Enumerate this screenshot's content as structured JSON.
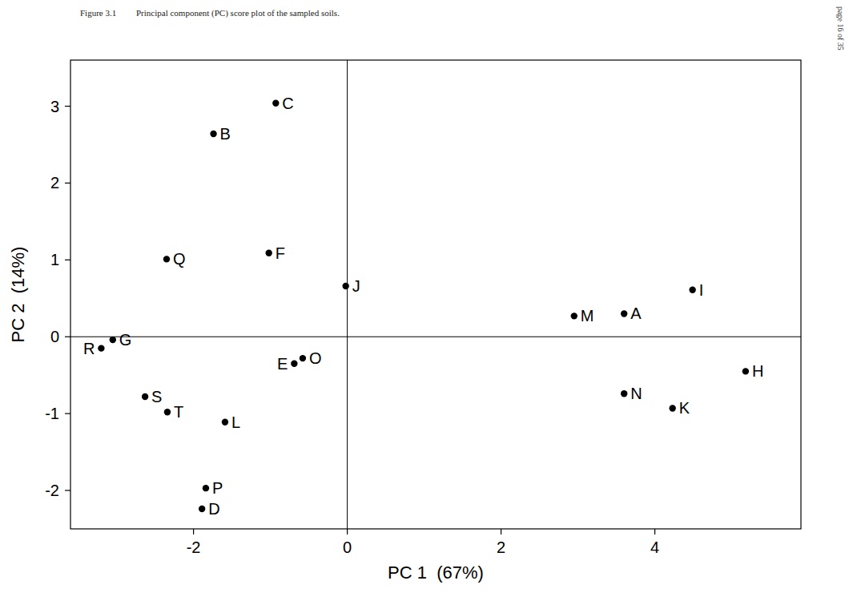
{
  "chart_data": {
    "type": "scatter",
    "title": "Figure 3.1",
    "subtitle": "Principal component (PC) score plot of the sampled soils.",
    "annotations": [
      "page 16 of 35"
    ],
    "x_label": "PC 1  (67%)",
    "y_label": "PC 2  (14%)",
    "labels": [
      "C",
      "B",
      "Q",
      "F",
      "J",
      "M",
      "A",
      "I",
      "G",
      "R",
      "E",
      "O",
      "H",
      "N",
      "K",
      "S",
      "T",
      "L",
      "P",
      "D"
    ],
    "x": [
      -0.93,
      -1.74,
      -2.35,
      -1.02,
      -0.02,
      2.95,
      3.6,
      4.49,
      -3.05,
      -3.2,
      -0.69,
      -0.58,
      5.18,
      3.6,
      4.23,
      -2.63,
      -2.34,
      -1.59,
      -1.84,
      -1.89
    ],
    "values": [
      3.04,
      2.64,
      1.01,
      1.09,
      0.66,
      0.27,
      0.3,
      0.61,
      -0.04,
      -0.15,
      -0.35,
      -0.28,
      -0.45,
      -0.74,
      -0.93,
      -0.78,
      -0.98,
      -1.11,
      -1.97,
      -2.24
    ],
    "hlines": [
      0
    ],
    "vlines": [
      0
    ],
    "color": "#000000",
    "marker": "circle",
    "grid": false,
    "xlim": [
      -3.6,
      5.9
    ],
    "ylim": [
      -2.5,
      3.6
    ],
    "xticks": [
      -2,
      0,
      2,
      4
    ],
    "yticks": [
      -2,
      -1,
      0,
      1,
      2,
      3
    ]
  }
}
